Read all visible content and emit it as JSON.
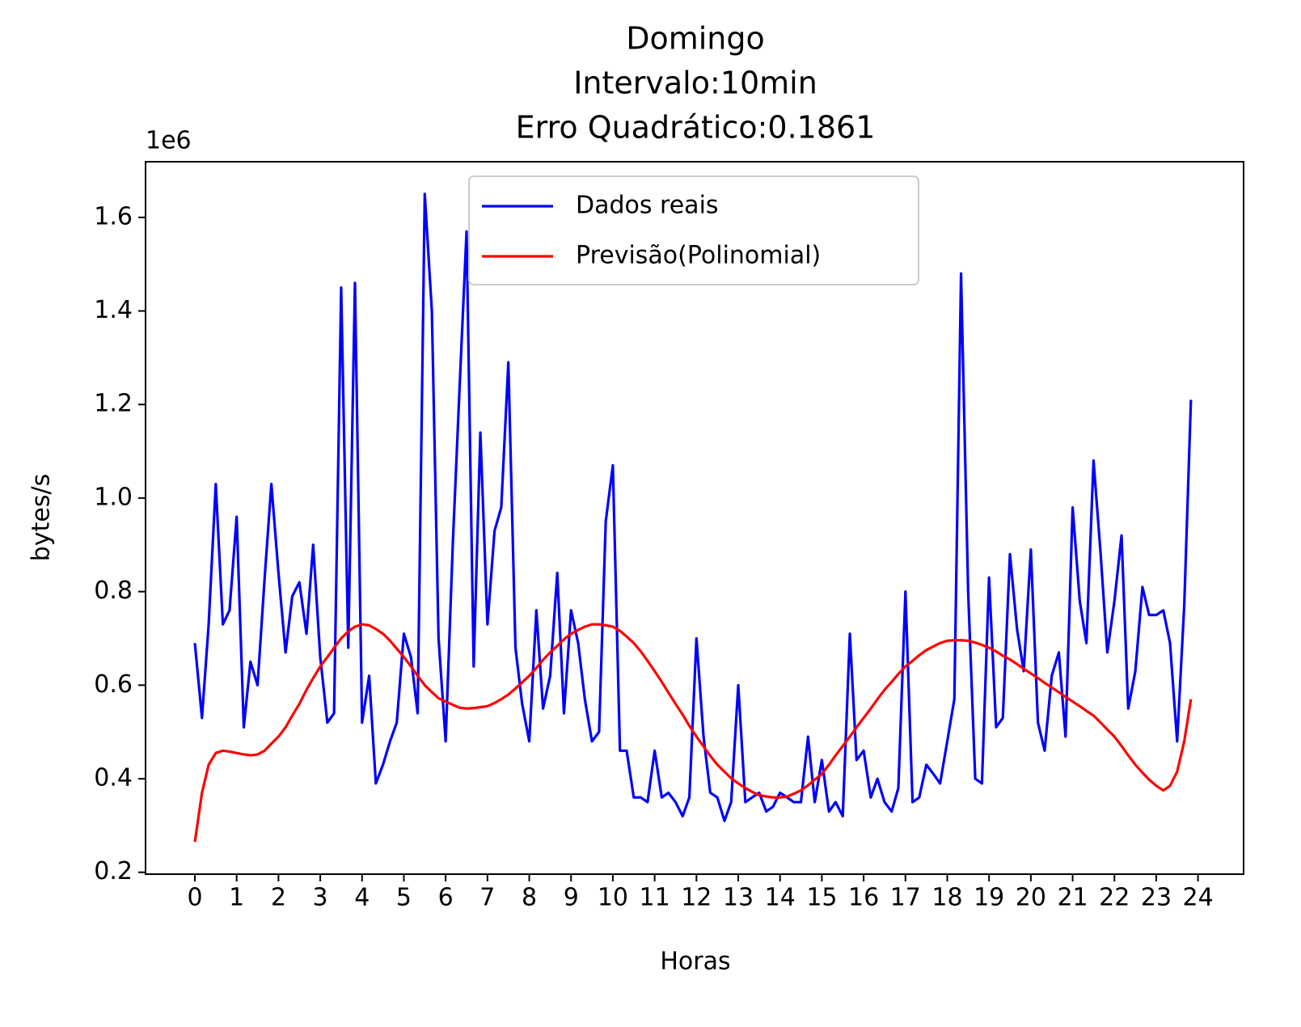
{
  "chart_data": {
    "type": "line",
    "title": [
      "Domingo",
      "Intervalo:10min",
      "Erro Quadrático:0.1861"
    ],
    "xlabel": "Horas",
    "ylabel": "bytes/s",
    "y_offset_label": "1e6",
    "legend": "upper center",
    "grid": false,
    "xlim": [
      -1.18,
      25.09
    ],
    "ylim": [
      0.196,
      1.719
    ],
    "xticks": [
      0,
      1,
      2,
      3,
      4,
      5,
      6,
      7,
      8,
      9,
      10,
      11,
      12,
      13,
      14,
      15,
      16,
      17,
      18,
      19,
      20,
      21,
      22,
      23,
      24
    ],
    "yticks": [
      0.2,
      0.4,
      0.6,
      0.8,
      {
        "value": 1,
        "label": "1.0"
      },
      1.2,
      1.4,
      1.6
    ],
    "x": [
      0,
      0.17,
      0.33,
      0.5,
      0.67,
      0.83,
      1,
      1.17,
      1.33,
      1.5,
      1.67,
      1.83,
      2,
      2.17,
      2.33,
      2.5,
      2.67,
      2.83,
      3,
      3.17,
      3.33,
      3.5,
      3.67,
      3.83,
      4,
      4.17,
      4.33,
      4.5,
      4.67,
      4.83,
      5,
      5.17,
      5.33,
      5.5,
      5.67,
      5.83,
      6,
      6.17,
      6.33,
      6.5,
      6.67,
      6.83,
      7,
      7.17,
      7.33,
      7.5,
      7.67,
      7.83,
      8,
      8.17,
      8.33,
      8.5,
      8.67,
      8.83,
      9,
      9.17,
      9.33,
      9.5,
      9.67,
      9.83,
      10,
      10.17,
      10.33,
      10.5,
      10.67,
      10.83,
      11,
      11.17,
      11.33,
      11.5,
      11.67,
      11.83,
      12,
      12.17,
      12.33,
      12.5,
      12.67,
      12.83,
      13,
      13.17,
      13.33,
      13.5,
      13.67,
      13.83,
      14,
      14.17,
      14.33,
      14.5,
      14.67,
      14.83,
      15,
      15.17,
      15.33,
      15.5,
      15.67,
      15.83,
      16,
      16.17,
      16.33,
      16.5,
      16.67,
      16.83,
      17,
      17.17,
      17.33,
      17.5,
      17.67,
      17.83,
      18,
      18.17,
      18.33,
      18.5,
      18.67,
      18.83,
      19,
      19.17,
      19.33,
      19.5,
      19.67,
      19.83,
      20,
      20.17,
      20.33,
      20.5,
      20.67,
      20.83,
      21,
      21.17,
      21.33,
      21.5,
      21.67,
      21.83,
      22,
      22.17,
      22.33,
      22.5,
      22.67,
      22.83,
      23,
      23.17,
      23.33,
      23.5,
      23.67,
      23.83
    ],
    "series": [
      {
        "name": "Dados reais",
        "color": "#0000ff",
        "values": [
          0.69,
          0.53,
          0.73,
          1.03,
          0.73,
          0.76,
          0.96,
          0.51,
          0.65,
          0.6,
          0.83,
          1.03,
          0.84,
          0.67,
          0.79,
          0.82,
          0.71,
          0.9,
          0.66,
          0.52,
          0.54,
          1.45,
          0.68,
          1.46,
          0.52,
          0.62,
          0.39,
          0.43,
          0.48,
          0.52,
          0.71,
          0.66,
          0.54,
          1.65,
          1.4,
          0.7,
          0.48,
          0.9,
          1.23,
          1.57,
          0.64,
          1.14,
          0.73,
          0.93,
          0.98,
          1.29,
          0.68,
          0.56,
          0.48,
          0.76,
          0.55,
          0.62,
          0.84,
          0.54,
          0.76,
          0.69,
          0.57,
          0.48,
          0.5,
          0.95,
          1.07,
          0.46,
          0.46,
          0.36,
          0.36,
          0.35,
          0.46,
          0.36,
          0.37,
          0.35,
          0.32,
          0.36,
          0.7,
          0.49,
          0.37,
          0.36,
          0.31,
          0.35,
          0.6,
          0.35,
          0.36,
          0.37,
          0.33,
          0.34,
          0.37,
          0.36,
          0.35,
          0.35,
          0.49,
          0.35,
          0.44,
          0.33,
          0.35,
          0.32,
          0.71,
          0.44,
          0.46,
          0.36,
          0.4,
          0.35,
          0.33,
          0.38,
          0.8,
          0.35,
          0.36,
          0.43,
          0.41,
          0.39,
          0.48,
          0.57,
          1.48,
          0.8,
          0.4,
          0.39,
          0.83,
          0.51,
          0.53,
          0.88,
          0.72,
          0.63,
          0.89,
          0.52,
          0.46,
          0.62,
          0.67,
          0.49,
          0.98,
          0.78,
          0.69,
          1.08,
          0.88,
          0.67,
          0.78,
          0.92,
          0.55,
          0.63,
          0.81,
          0.75,
          0.75,
          0.76,
          0.69,
          0.48,
          0.77,
          1.21
        ]
      },
      {
        "name": "Previsão(Polinomial)",
        "color": "#ff0000",
        "values": [
          0.265,
          0.37,
          0.43,
          0.455,
          0.46,
          0.458,
          0.455,
          0.452,
          0.45,
          0.452,
          0.46,
          0.475,
          0.49,
          0.51,
          0.535,
          0.56,
          0.59,
          0.615,
          0.64,
          0.66,
          0.68,
          0.7,
          0.715,
          0.725,
          0.73,
          0.728,
          0.72,
          0.71,
          0.695,
          0.678,
          0.66,
          0.64,
          0.62,
          0.6,
          0.585,
          0.572,
          0.565,
          0.558,
          0.552,
          0.55,
          0.551,
          0.553,
          0.555,
          0.562,
          0.57,
          0.58,
          0.593,
          0.606,
          0.62,
          0.637,
          0.654,
          0.67,
          0.684,
          0.698,
          0.71,
          0.718,
          0.725,
          0.73,
          0.73,
          0.728,
          0.725,
          0.716,
          0.704,
          0.69,
          0.672,
          0.652,
          0.63,
          0.607,
          0.584,
          0.56,
          0.537,
          0.513,
          0.49,
          0.469,
          0.449,
          0.43,
          0.415,
          0.401,
          0.39,
          0.38,
          0.372,
          0.365,
          0.362,
          0.36,
          0.36,
          0.362,
          0.368,
          0.375,
          0.386,
          0.398,
          0.41,
          0.43,
          0.45,
          0.47,
          0.49,
          0.51,
          0.53,
          0.55,
          0.57,
          0.59,
          0.607,
          0.624,
          0.64,
          0.652,
          0.664,
          0.675,
          0.683,
          0.69,
          0.695,
          0.696,
          0.696,
          0.695,
          0.691,
          0.686,
          0.68,
          0.672,
          0.663,
          0.655,
          0.645,
          0.635,
          0.625,
          0.615,
          0.605,
          0.595,
          0.585,
          0.575,
          0.565,
          0.555,
          0.545,
          0.535,
          0.52,
          0.505,
          0.49,
          0.47,
          0.45,
          0.43,
          0.413,
          0.398,
          0.385,
          0.375,
          0.385,
          0.415,
          0.48,
          0.57
        ]
      }
    ]
  }
}
